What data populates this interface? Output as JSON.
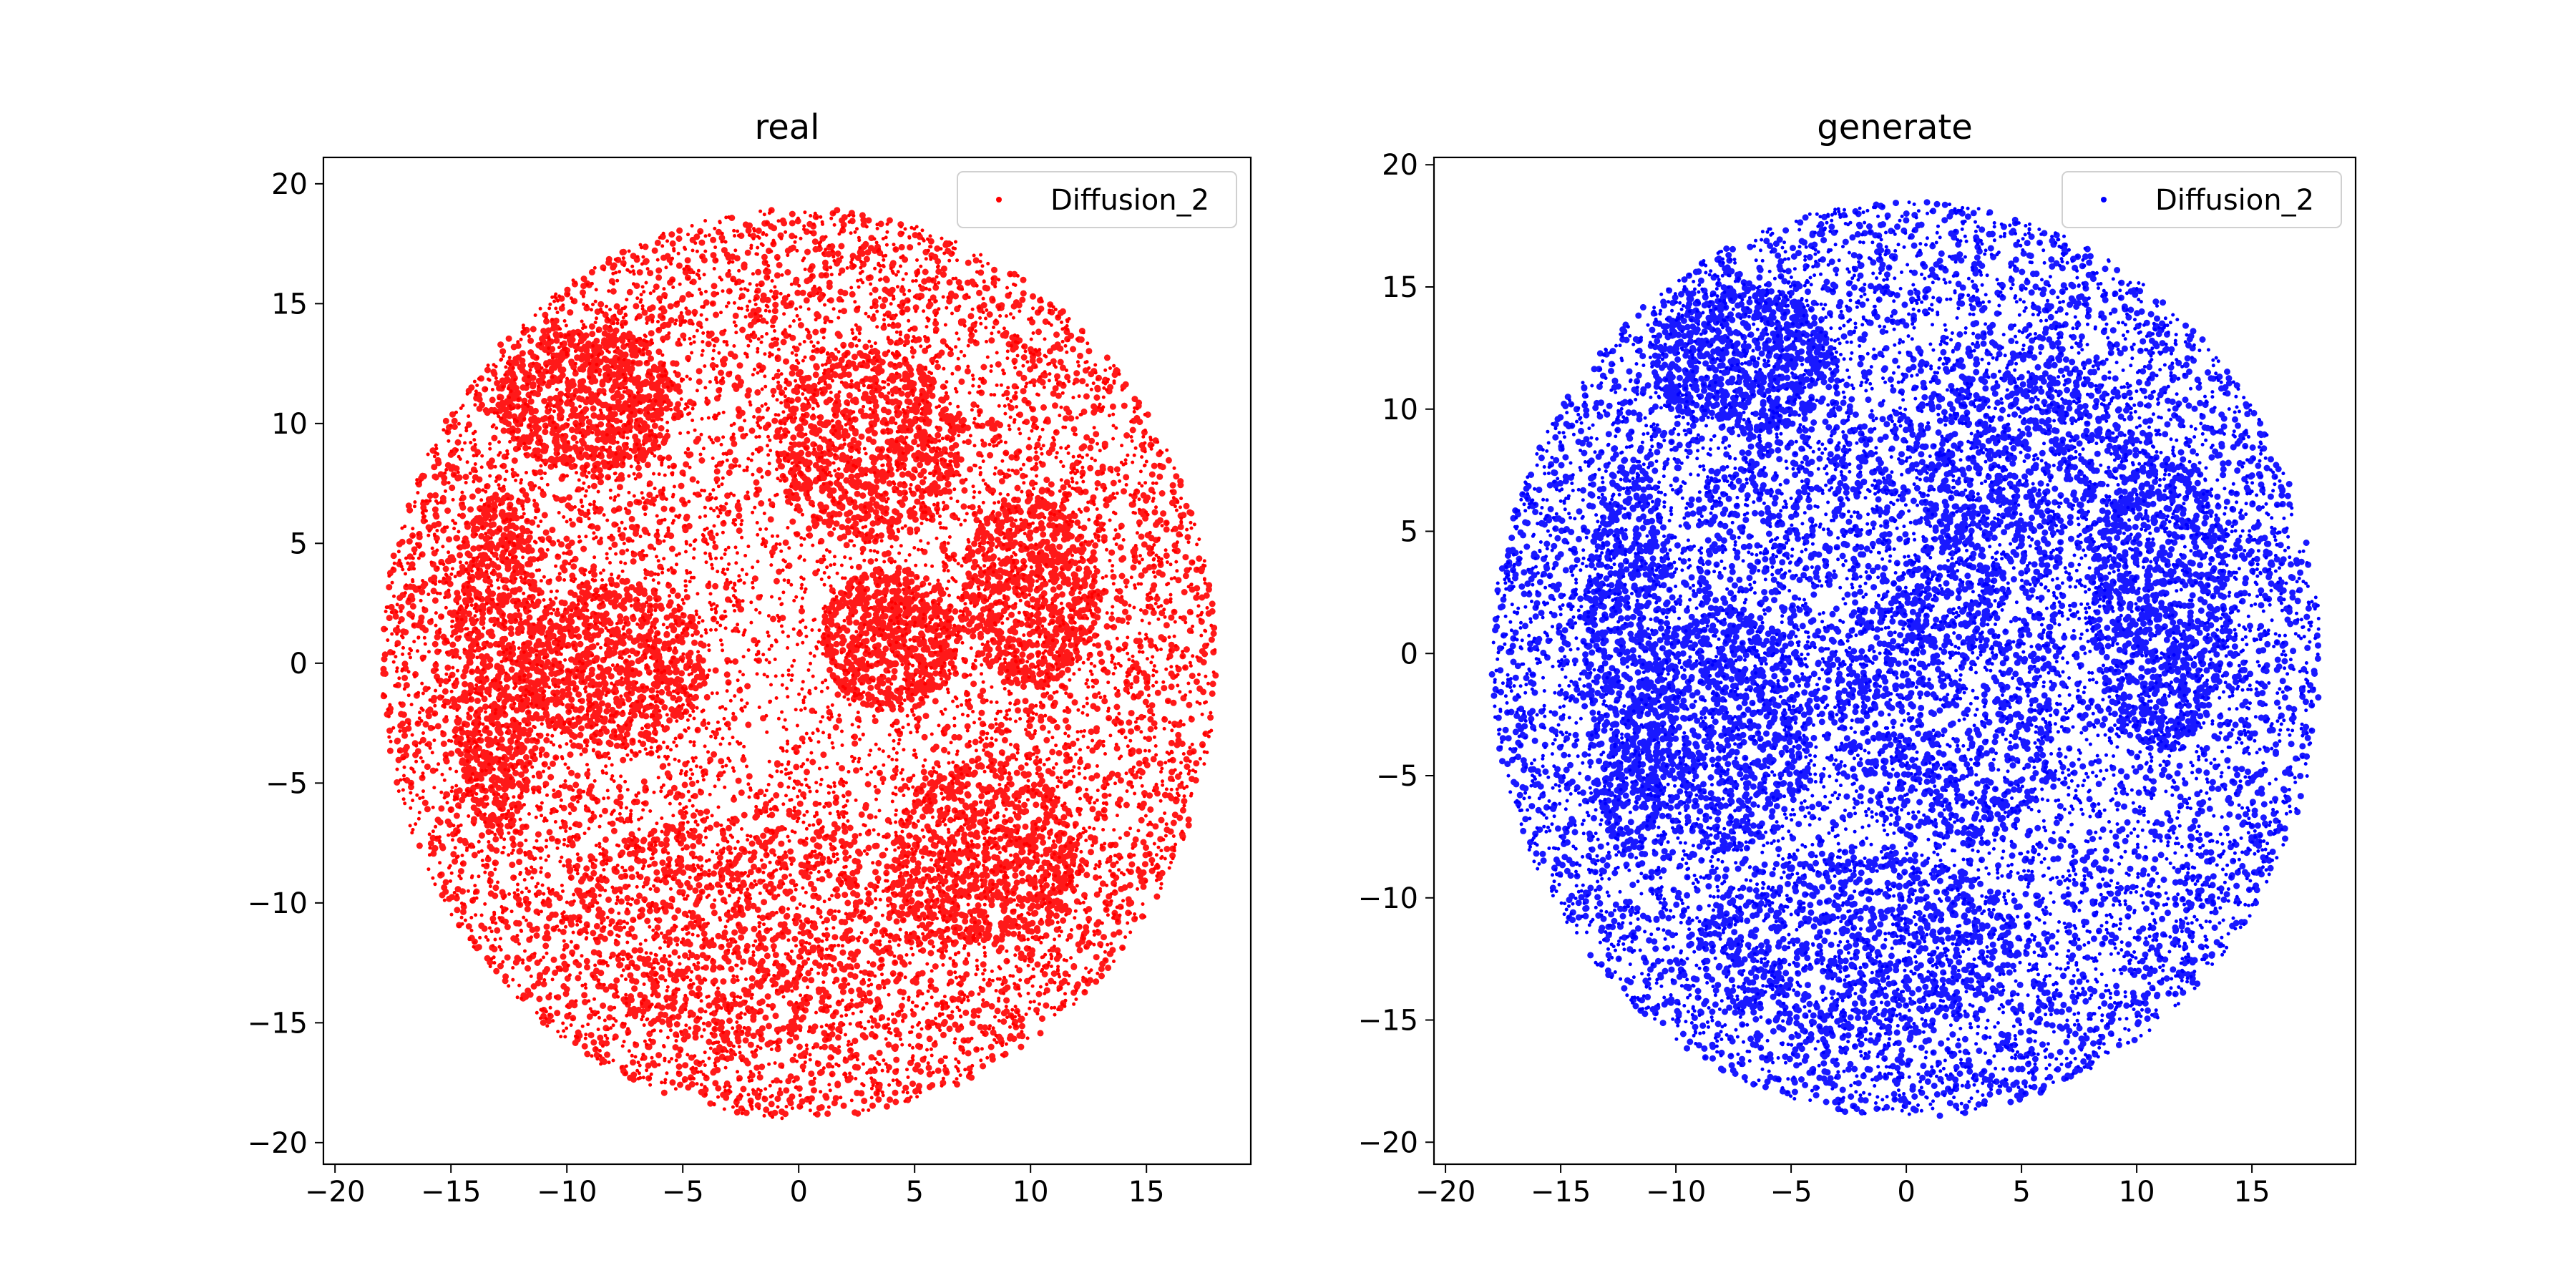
{
  "chart_data": [
    {
      "type": "scatter",
      "title": "real",
      "xlabel": "",
      "ylabel": "",
      "xlim": [
        -20.5,
        19.5
      ],
      "ylim": [
        -20.9,
        21.1
      ],
      "xticks": [
        -20,
        -15,
        -10,
        -5,
        0,
        5,
        10,
        15
      ],
      "yticks": [
        -20,
        -15,
        -10,
        -5,
        0,
        5,
        10,
        15,
        20
      ],
      "grid": false,
      "legend_position": "upper right",
      "series": [
        {
          "name": "Diffusion_2",
          "color": "#ff0000",
          "distribution": "dense points within a disk centered near (0, 0), radius about 18",
          "x_range": [
            -18,
            18
          ],
          "y_range": [
            -19,
            19
          ]
        }
      ]
    },
    {
      "type": "scatter",
      "title": "generate",
      "xlabel": "",
      "ylabel": "",
      "xlim": [
        -20.5,
        19.5
      ],
      "ylim": [
        -20.9,
        20.3
      ],
      "xticks": [
        -20,
        -15,
        -10,
        -5,
        0,
        5,
        10,
        15
      ],
      "yticks": [
        -20,
        -15,
        -10,
        -5,
        0,
        5,
        10,
        15,
        20
      ],
      "grid": false,
      "legend_position": "upper right",
      "series": [
        {
          "name": "Diffusion_2",
          "color": "#0000ff",
          "distribution": "dense points within a disk centered near (0, 0), radius about 18",
          "x_range": [
            -18,
            18
          ],
          "y_range": [
            -19,
            18.5
          ]
        }
      ]
    }
  ]
}
